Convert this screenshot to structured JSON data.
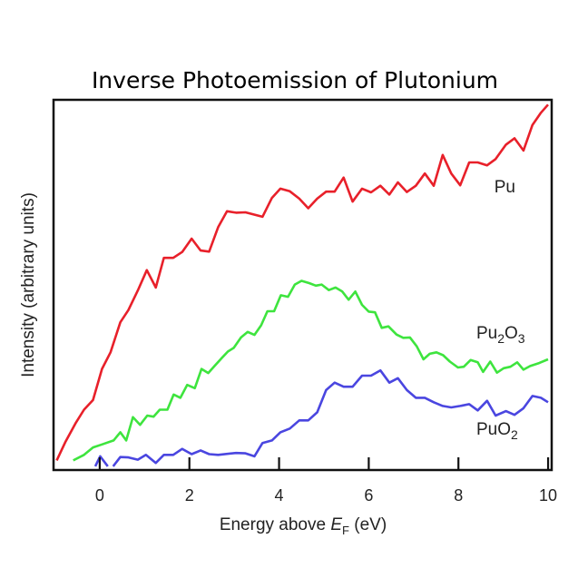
{
  "chart_data": {
    "type": "line",
    "title": "Inverse Photoemission of Plutonium",
    "xlabel": {
      "prefix": "Energy above ",
      "symbol": "E",
      "sub": "F",
      "suffix": " (eV)"
    },
    "ylabel": "Intensity (arbitrary units)",
    "xlim": [
      -1.03,
      10.08
    ],
    "ylim": [
      0,
      100
    ],
    "xticks": [
      "0",
      "2",
      "4",
      "6",
      "8",
      "10"
    ],
    "xtick_values": [
      0,
      2,
      4,
      6,
      8,
      10
    ],
    "grid": false,
    "series": [
      {
        "name": "Pu",
        "label_parts": [
          "Pu"
        ],
        "color": "#e8202a",
        "label_pos": [
          8.8,
          75
        ],
        "x": [
          -0.96,
          -0.76,
          -0.54,
          -0.35,
          -0.15,
          0.05,
          0.24,
          0.46,
          0.64,
          0.85,
          1.05,
          1.25,
          1.43,
          1.64,
          1.84,
          2.05,
          2.25,
          2.44,
          2.64,
          2.84,
          3.04,
          3.25,
          3.63,
          3.84,
          4.03,
          4.24,
          4.45,
          4.65,
          4.85,
          5.05,
          5.24,
          5.44,
          5.64,
          5.85,
          6.05,
          6.26,
          6.46,
          6.65,
          6.85,
          7.05,
          7.25,
          7.45,
          7.65,
          7.84,
          8.04,
          8.24,
          8.43,
          8.64,
          8.83,
          9.06,
          9.25,
          9.45,
          9.65,
          9.84,
          10.0
        ],
        "y": [
          2.6,
          7.7,
          12.6,
          16.3,
          18.9,
          27.3,
          31.8,
          39.9,
          43.2,
          48.5,
          54.0,
          49.3,
          57.3,
          57.3,
          58.9,
          62.5,
          59.3,
          59.0,
          65.6,
          69.9,
          69.5,
          69.6,
          68.4,
          73.5,
          76.0,
          75.3,
          73.3,
          70.7,
          73.3,
          75.2,
          75.2,
          79.0,
          72.5,
          76.0,
          75.0,
          76.8,
          74.4,
          77.7,
          75.1,
          76.8,
          80.1,
          76.8,
          85.1,
          80.1,
          76.9,
          83.1,
          83.1,
          82.3,
          84.0,
          87.9,
          89.6,
          86.3,
          93.2,
          96.5,
          98.7
        ]
      },
      {
        "name": "Pu2O3",
        "label_parts": [
          "Pu",
          "2",
          "O",
          "3"
        ],
        "color": "#3ee43e",
        "label_pos": [
          8.4,
          35.5
        ],
        "x": [
          -0.59,
          -0.35,
          -0.15,
          0.05,
          0.31,
          0.46,
          0.59,
          0.74,
          0.9,
          1.06,
          1.2,
          1.34,
          1.51,
          1.65,
          1.8,
          1.95,
          2.12,
          2.27,
          2.42,
          2.56,
          2.71,
          2.86,
          2.99,
          3.15,
          3.3,
          3.45,
          3.6,
          3.74,
          3.89,
          4.04,
          4.2,
          4.35,
          4.5,
          4.67,
          4.82,
          4.95,
          5.11,
          5.26,
          5.41,
          5.55,
          5.7,
          5.85,
          6.0,
          6.14,
          6.29,
          6.44,
          6.62,
          6.77,
          6.92,
          7.07,
          7.22,
          7.36,
          7.51,
          7.66,
          7.81,
          7.99,
          8.12,
          8.27,
          8.43,
          8.55,
          8.71,
          8.86,
          9.01,
          9.16,
          9.31,
          9.45,
          9.6,
          9.8,
          10.0
        ],
        "y": [
          2.6,
          4.1,
          6.1,
          6.9,
          8.0,
          10.2,
          8.0,
          14.3,
          12.2,
          14.7,
          14.4,
          16.3,
          16.3,
          20.4,
          19.5,
          23.0,
          22.1,
          27.3,
          26.2,
          28.1,
          30.1,
          32.0,
          33.0,
          35.8,
          37.3,
          36.5,
          39.1,
          42.9,
          42.9,
          47.2,
          46.8,
          50.1,
          51.1,
          50.5,
          49.8,
          50.1,
          48.6,
          49.3,
          48.2,
          46.0,
          48.2,
          44.6,
          42.8,
          42.6,
          38.4,
          38.8,
          36.6,
          35.7,
          35.8,
          33.4,
          29.9,
          31.4,
          31.8,
          31.0,
          29.3,
          27.7,
          27.9,
          29.7,
          29.1,
          26.5,
          29.3,
          26.3,
          27.5,
          27.9,
          29.1,
          27.1,
          28.1,
          28.9,
          29.9
        ]
      },
      {
        "name": "PuO2",
        "label_parts": [
          "Pu",
          "O",
          "2"
        ],
        "color": "#4a46e0",
        "label_pos": [
          8.4,
          9.5
        ],
        "x": [
          -0.1,
          0.01,
          0.18,
          null,
          0.3,
          0.46,
          0.64,
          0.85,
          1.03,
          1.25,
          1.43,
          1.64,
          1.84,
          2.05,
          2.25,
          2.44,
          2.64,
          3.04,
          3.25,
          3.45,
          3.63,
          3.84,
          4.03,
          4.24,
          4.45,
          4.65,
          4.85,
          5.05,
          5.24,
          5.44,
          5.64,
          5.85,
          6.05,
          6.26,
          6.46,
          6.65,
          6.85,
          7.05,
          7.25,
          7.45,
          7.65,
          7.84,
          8.04,
          8.24,
          8.43,
          8.64,
          8.83,
          9.06,
          9.25,
          9.45,
          9.65,
          9.84,
          10.0
        ],
        "y": [
          1.0,
          3.7,
          1.0,
          null,
          1.0,
          3.5,
          3.4,
          2.8,
          4.1,
          1.9,
          4.1,
          4.1,
          5.7,
          4.3,
          5.3,
          4.3,
          4.1,
          4.6,
          4.5,
          3.7,
          7.3,
          8.0,
          10.2,
          11.2,
          13.4,
          13.4,
          15.6,
          21.6,
          23.6,
          22.5,
          22.5,
          25.5,
          25.5,
          26.9,
          23.6,
          24.8,
          21.6,
          19.5,
          19.5,
          18.3,
          17.3,
          16.9,
          17.3,
          17.8,
          16.1,
          18.7,
          14.7,
          15.9,
          14.9,
          16.7,
          20.0,
          19.5,
          18.3
        ]
      }
    ]
  }
}
